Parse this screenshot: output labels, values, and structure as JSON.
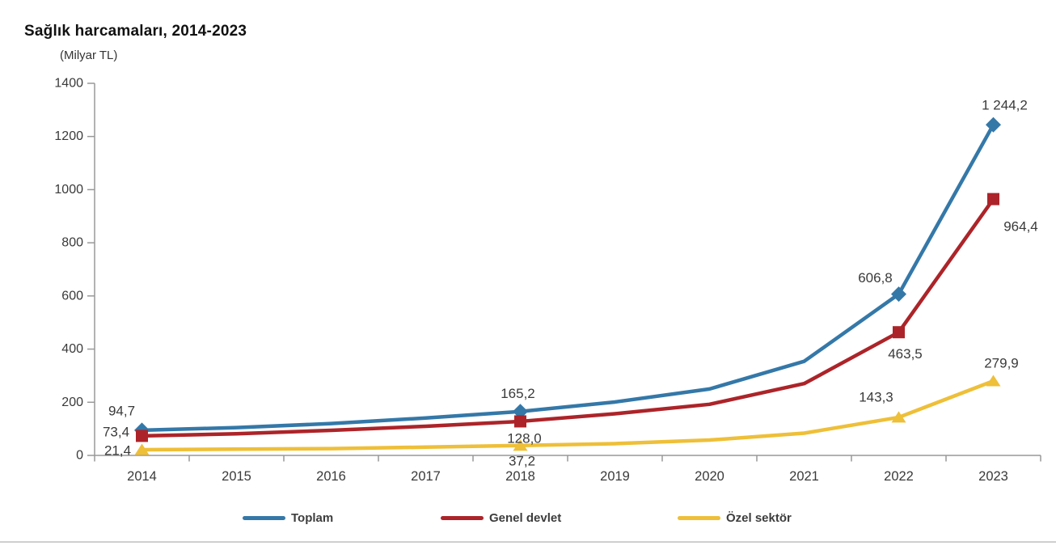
{
  "chart_data": {
    "type": "line",
    "title": "Sağlık harcamaları, 2014-2023",
    "unit_label": "(Milyar TL)",
    "categories": [
      "2014",
      "2015",
      "2016",
      "2017",
      "2018",
      "2019",
      "2020",
      "2021",
      "2022",
      "2023"
    ],
    "ylim": [
      0,
      1400
    ],
    "ytick_step": 200,
    "ytick_labels": [
      "0",
      "200",
      "400",
      "600",
      "800",
      "1000",
      "1200",
      "1400"
    ],
    "grid": false,
    "legend_position": "bottom",
    "labeled_years": [
      "2014",
      "2018",
      "2022",
      "2023"
    ],
    "series": [
      {
        "name": "Toplam",
        "color": "#3478a8",
        "marker": "diamond",
        "values": [
          94.7,
          104.6,
          119.8,
          140.7,
          165.2,
          201.0,
          249.9,
          353.9,
          606.8,
          1244.2
        ],
        "value_labels": {
          "2014": "94,7",
          "2018": "165,2",
          "2022": "606,8",
          "2023": "1 244,2"
        }
      },
      {
        "name": "Genel devlet",
        "color": "#ac2429",
        "marker": "square",
        "values": [
          73.4,
          81.3,
          94.3,
          109.6,
          128.0,
          156.8,
          192.3,
          270.2,
          463.5,
          964.4
        ],
        "value_labels": {
          "2014": "73,4",
          "2018": "128,0",
          "2022": "463,5",
          "2023": "964,4"
        }
      },
      {
        "name": "Özel sektör",
        "color": "#eebf38",
        "marker": "triangle",
        "values": [
          21.4,
          23.4,
          25.6,
          31.1,
          37.2,
          44.2,
          57.7,
          83.7,
          143.3,
          279.9
        ],
        "value_labels": {
          "2014": "21,4",
          "2018": "37,2",
          "2022": "143,3",
          "2023": "279,9"
        }
      }
    ]
  },
  "colors": {
    "axis": "#999999",
    "tick_text": "#3a3a3a",
    "data_label_text": "#3a3a3a",
    "divider": "#cfcfcf"
  }
}
